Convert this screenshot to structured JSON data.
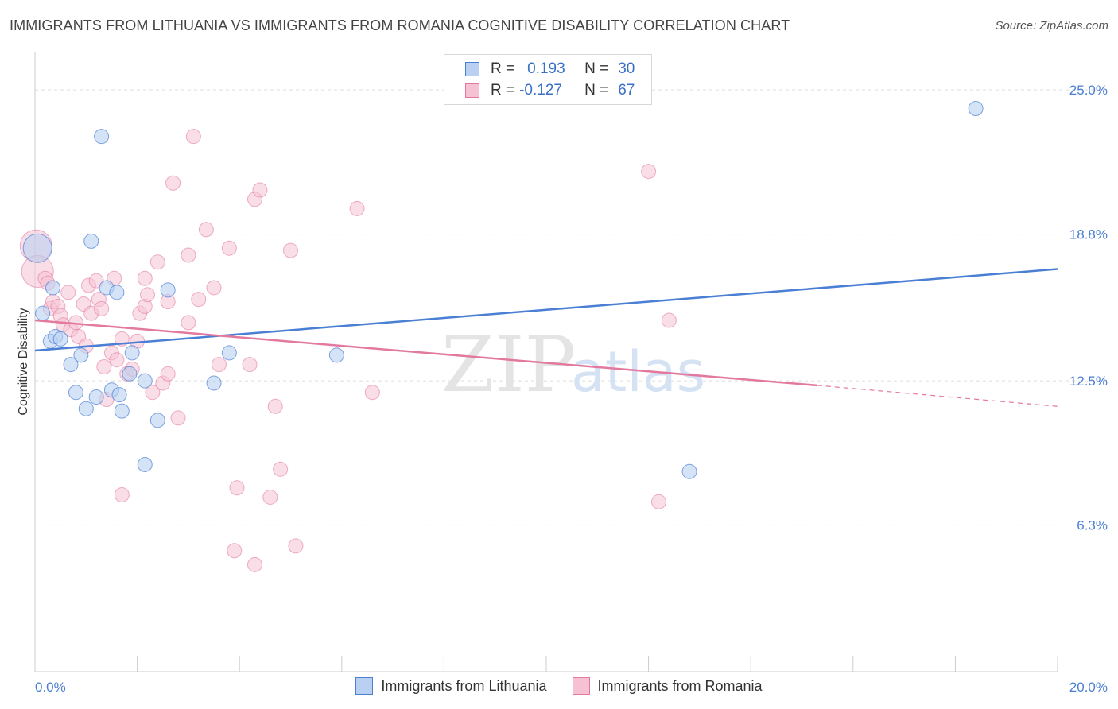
{
  "title": "IMMIGRANTS FROM LITHUANIA VS IMMIGRANTS FROM ROMANIA COGNITIVE DISABILITY CORRELATION CHART",
  "source": "Source: ZipAtlas.com",
  "watermark": {
    "zip": "ZIP",
    "atlas": "atlas"
  },
  "legend": {
    "r_label": "R =",
    "n_label": "N =",
    "series": [
      {
        "r": "0.193",
        "n": "30"
      },
      {
        "r": "-0.127",
        "n": "67"
      }
    ]
  },
  "bottom_legend": [
    "Immigrants from Lithuania",
    "Immigrants from Romania"
  ],
  "colors": {
    "lithuania": "#4a7fd4",
    "romania": "#e3799e",
    "lith_fill": "#b9d0f2",
    "rom_fill": "#f6c2d3"
  },
  "chart_data": {
    "type": "scatter",
    "title": "IMMIGRANTS FROM LITHUANIA VS IMMIGRANTS FROM ROMANIA COGNITIVE DISABILITY CORRELATION CHART",
    "xlabel": "",
    "ylabel": "Cognitive Disability",
    "xlim": [
      0,
      20
    ],
    "ylim": [
      0,
      26.2
    ],
    "x_tick_labels": [
      "0.0%",
      "20.0%"
    ],
    "y_ticks": [
      6.3,
      12.5,
      18.8,
      25.0
    ],
    "y_tick_labels": [
      "6.3%",
      "12.5%",
      "18.8%",
      "25.0%"
    ],
    "series": [
      {
        "name": "Immigrants from Lithuania",
        "trend": {
          "x": [
            0,
            20
          ],
          "y": [
            13.8,
            17.3
          ]
        },
        "points": [
          {
            "x": 0.05,
            "y": 18.2,
            "big": true
          },
          {
            "x": 0.15,
            "y": 15.4
          },
          {
            "x": 0.3,
            "y": 14.2
          },
          {
            "x": 0.35,
            "y": 16.5
          },
          {
            "x": 0.4,
            "y": 14.4
          },
          {
            "x": 0.5,
            "y": 14.3
          },
          {
            "x": 0.7,
            "y": 13.2
          },
          {
            "x": 0.8,
            "y": 12.0
          },
          {
            "x": 0.9,
            "y": 13.6
          },
          {
            "x": 1.0,
            "y": 11.3
          },
          {
            "x": 1.1,
            "y": 18.5
          },
          {
            "x": 1.2,
            "y": 11.8
          },
          {
            "x": 1.3,
            "y": 23.0
          },
          {
            "x": 1.4,
            "y": 16.5
          },
          {
            "x": 1.5,
            "y": 12.1
          },
          {
            "x": 1.6,
            "y": 16.3
          },
          {
            "x": 1.65,
            "y": 11.9
          },
          {
            "x": 1.7,
            "y": 11.2
          },
          {
            "x": 1.85,
            "y": 12.8
          },
          {
            "x": 1.9,
            "y": 13.7
          },
          {
            "x": 2.15,
            "y": 12.5
          },
          {
            "x": 2.15,
            "y": 8.9
          },
          {
            "x": 2.4,
            "y": 10.8
          },
          {
            "x": 2.6,
            "y": 16.4
          },
          {
            "x": 3.5,
            "y": 12.4
          },
          {
            "x": 3.8,
            "y": 13.7
          },
          {
            "x": 5.9,
            "y": 13.6
          },
          {
            "x": 12.8,
            "y": 8.6
          },
          {
            "x": 18.4,
            "y": 24.2
          }
        ]
      },
      {
        "name": "Immigrants from Romania",
        "trend": {
          "x": [
            0,
            15.3
          ],
          "y": [
            15.1,
            12.3
          ]
        },
        "trend_dashed": {
          "x": [
            15.3,
            20
          ],
          "y": [
            12.3,
            11.4
          ]
        },
        "points": [
          {
            "x": 0.02,
            "y": 18.3,
            "big": true
          },
          {
            "x": 0.05,
            "y": 17.2,
            "big": true
          },
          {
            "x": 0.2,
            "y": 16.9
          },
          {
            "x": 0.25,
            "y": 16.7
          },
          {
            "x": 0.3,
            "y": 15.6
          },
          {
            "x": 0.35,
            "y": 15.9
          },
          {
            "x": 0.45,
            "y": 15.7
          },
          {
            "x": 0.5,
            "y": 15.3
          },
          {
            "x": 0.55,
            "y": 14.9
          },
          {
            "x": 0.65,
            "y": 16.3
          },
          {
            "x": 0.7,
            "y": 14.7
          },
          {
            "x": 0.8,
            "y": 15.0
          },
          {
            "x": 0.85,
            "y": 14.4
          },
          {
            "x": 0.95,
            "y": 15.8
          },
          {
            "x": 1.0,
            "y": 14.0
          },
          {
            "x": 1.05,
            "y": 16.6
          },
          {
            "x": 1.1,
            "y": 15.4
          },
          {
            "x": 1.2,
            "y": 16.8
          },
          {
            "x": 1.25,
            "y": 16.0
          },
          {
            "x": 1.3,
            "y": 15.6
          },
          {
            "x": 1.35,
            "y": 13.1
          },
          {
            "x": 1.4,
            "y": 11.7
          },
          {
            "x": 1.5,
            "y": 13.7
          },
          {
            "x": 1.55,
            "y": 16.9
          },
          {
            "x": 1.6,
            "y": 13.4
          },
          {
            "x": 1.7,
            "y": 7.6
          },
          {
            "x": 1.7,
            "y": 14.3
          },
          {
            "x": 1.8,
            "y": 12.8
          },
          {
            "x": 1.9,
            "y": 13.0
          },
          {
            "x": 2.0,
            "y": 14.2
          },
          {
            "x": 2.05,
            "y": 15.4
          },
          {
            "x": 2.15,
            "y": 15.7
          },
          {
            "x": 2.15,
            "y": 16.9
          },
          {
            "x": 2.2,
            "y": 16.2
          },
          {
            "x": 2.3,
            "y": 12.0
          },
          {
            "x": 2.4,
            "y": 17.6
          },
          {
            "x": 2.5,
            "y": 12.4
          },
          {
            "x": 2.6,
            "y": 15.9
          },
          {
            "x": 2.6,
            "y": 12.8
          },
          {
            "x": 2.7,
            "y": 21.0
          },
          {
            "x": 2.8,
            "y": 10.9
          },
          {
            "x": 3.0,
            "y": 15.0
          },
          {
            "x": 3.0,
            "y": 17.9
          },
          {
            "x": 3.1,
            "y": 23.0
          },
          {
            "x": 3.2,
            "y": 16.0
          },
          {
            "x": 3.35,
            "y": 19.0
          },
          {
            "x": 3.5,
            "y": 16.5
          },
          {
            "x": 3.6,
            "y": 13.2
          },
          {
            "x": 3.8,
            "y": 18.2
          },
          {
            "x": 3.9,
            "y": 5.2
          },
          {
            "x": 3.95,
            "y": 7.9
          },
          {
            "x": 4.2,
            "y": 13.2
          },
          {
            "x": 4.3,
            "y": 4.6
          },
          {
            "x": 4.3,
            "y": 20.3
          },
          {
            "x": 4.4,
            "y": 20.7
          },
          {
            "x": 4.6,
            "y": 7.5
          },
          {
            "x": 4.7,
            "y": 11.4
          },
          {
            "x": 4.8,
            "y": 8.7
          },
          {
            "x": 5.0,
            "y": 18.1
          },
          {
            "x": 5.1,
            "y": 5.4
          },
          {
            "x": 6.3,
            "y": 19.9
          },
          {
            "x": 6.6,
            "y": 12.0
          },
          {
            "x": 12.0,
            "y": 21.5
          },
          {
            "x": 12.2,
            "y": 7.3
          },
          {
            "x": 12.4,
            "y": 15.1
          }
        ]
      }
    ]
  }
}
